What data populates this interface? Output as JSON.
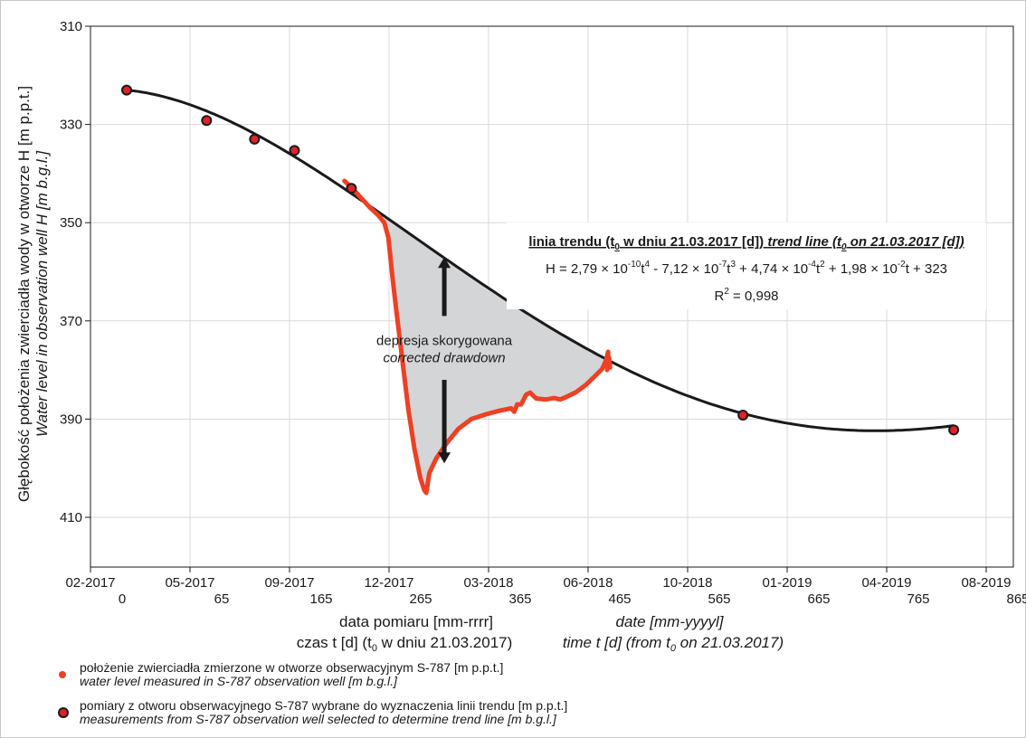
{
  "chart_data": {
    "type": "line",
    "ylim_label_order": "inverted",
    "ylim": [
      310,
      430
    ],
    "xlim": [
      0,
      865
    ],
    "grid": true,
    "y_ticks": [
      310,
      330,
      350,
      370,
      390,
      410
    ],
    "x_date_ticks": [
      {
        "t": 0,
        "date": "02-2017",
        "day": "0"
      },
      {
        "t": 100,
        "date": "05-2017",
        "day": "65"
      },
      {
        "t": 200,
        "date": "09-2017",
        "day": "165"
      },
      {
        "t": 300,
        "date": "12-2017",
        "day": "265"
      },
      {
        "t": 400,
        "date": "03-2018",
        "day": "365"
      },
      {
        "t": 500,
        "date": "06-2018",
        "day": "465"
      },
      {
        "t": 600,
        "date": "10-2018",
        "day": "565"
      },
      {
        "t": 700,
        "date": "01-2019",
        "day": "665"
      },
      {
        "t": 800,
        "date": "04-2019",
        "day": "765"
      },
      {
        "t": 900,
        "date": "08-2019",
        "day": "865"
      }
    ],
    "ylabel_pl": "Głębokość położenia zwierciadła wody w otworze H [m p.p.t.]",
    "ylabel_en": "Water level in observation well H [m b.g.l.]",
    "xlabel_date_pl": "data pomiaru [mm-rrrr]",
    "xlabel_date_en": "date [mm-yyyyl]",
    "xlabel_time_pl": "czas t [d] (t",
    "xlabel_time_pl_sub": "0",
    "xlabel_time_pl_rest": " w dniu 21.03.2017)",
    "xlabel_time_en": "time t [d] (from t",
    "xlabel_time_en_sub": "0",
    "xlabel_time_en_rest": " on 21.03.2017)",
    "trend_params": {
      "a4": 2.79e-10,
      "a3": -7.12e-07,
      "a2": 0.000474,
      "a1": 0.0198,
      "a0": 323,
      "t_start": 0,
      "t_end": 828
    },
    "selected_points": [
      {
        "t": 0,
        "h": 323
      },
      {
        "t": 80,
        "h": 329.2
      },
      {
        "t": 128,
        "h": 333
      },
      {
        "t": 168,
        "h": 335.3
      },
      {
        "t": 225,
        "h": 343
      },
      {
        "t": 617,
        "h": 389.2
      },
      {
        "t": 828,
        "h": 392.2
      }
    ],
    "measured_series": [
      {
        "t": 218,
        "h": 341.5
      },
      {
        "t": 226,
        "h": 343
      },
      {
        "t": 234,
        "h": 344.8
      },
      {
        "t": 244,
        "h": 347
      },
      {
        "t": 252,
        "h": 348.5
      },
      {
        "t": 258,
        "h": 350
      },
      {
        "t": 262,
        "h": 353
      },
      {
        "t": 264,
        "h": 357
      },
      {
        "t": 266,
        "h": 361
      },
      {
        "t": 270,
        "h": 368
      },
      {
        "t": 276,
        "h": 378
      },
      {
        "t": 282,
        "h": 388
      },
      {
        "t": 288,
        "h": 396
      },
      {
        "t": 294,
        "h": 402
      },
      {
        "t": 298,
        "h": 404.5
      },
      {
        "t": 300,
        "h": 405
      },
      {
        "t": 303,
        "h": 401
      },
      {
        "t": 310,
        "h": 398
      },
      {
        "t": 320,
        "h": 395
      },
      {
        "t": 332,
        "h": 392
      },
      {
        "t": 345,
        "h": 390
      },
      {
        "t": 360,
        "h": 389
      },
      {
        "t": 373,
        "h": 388.3
      },
      {
        "t": 385,
        "h": 387.8
      },
      {
        "t": 388,
        "h": 388.5
      },
      {
        "t": 391,
        "h": 387
      },
      {
        "t": 395,
        "h": 387
      },
      {
        "t": 400,
        "h": 385
      },
      {
        "t": 404,
        "h": 384.6
      },
      {
        "t": 410,
        "h": 385.8
      },
      {
        "t": 420,
        "h": 386
      },
      {
        "t": 428,
        "h": 385.7
      },
      {
        "t": 434,
        "h": 386
      },
      {
        "t": 440,
        "h": 385.5
      },
      {
        "t": 450,
        "h": 384.5
      },
      {
        "t": 460,
        "h": 383
      },
      {
        "t": 470,
        "h": 381
      },
      {
        "t": 476,
        "h": 379.8
      },
      {
        "t": 480,
        "h": 378
      },
      {
        "t": 482,
        "h": 376.3
      },
      {
        "t": 482,
        "h": 378.5
      },
      {
        "t": 481,
        "h": 380
      },
      {
        "t": 483,
        "h": 377.5
      },
      {
        "t": 484,
        "h": 379.5
      }
    ],
    "annotation": {
      "t": 318,
      "line1": "depresja skorygowana",
      "line2": "corrected drawdown",
      "arrow_top_h": 357,
      "arrow_bottom_h": 399,
      "gap_top_h": 369,
      "gap_bottom_h": 382
    },
    "equation": {
      "title_pl_a": "linia trendu (t",
      "title_pl_sub": "0",
      "title_pl_b": " w dniu 21.03.2017 [d])",
      "title_en_a": "trend line (t",
      "title_en_sub": "0",
      "title_en_b": " on 21.03.2017 [d])",
      "H_eq": "H = 2,79 × 10",
      "H_e1": "-10",
      "H_t1": "t",
      "H_p1": "4",
      "H_m2": " - 7,12 × 10",
      "H_e2": "-7",
      "H_t2": "t",
      "H_p2": "3",
      "H_m3": " + 4,74 × 10",
      "H_e3": "-4",
      "H_t3": "t",
      "H_p3": "2",
      "H_m4": " + 1,98 × 10",
      "H_e4": "-2",
      "H_rest": "t + 323",
      "r2_a": "R",
      "r2_sup": "2",
      "r2_b": " = 0,998"
    },
    "legend": [
      {
        "marker": "measured",
        "line1": "położenie zwierciadła zmierzone w otworze obserwacyjnym S-787 [m p.p.t.]",
        "line2": "water level measured in S-787 observation well [m b.g.l.]"
      },
      {
        "marker": "selected",
        "line1": "pomiary z otworu obserwacyjnego S-787 wybrane do wyznaczenia linii trendu [m p.p.t.]",
        "line2": "measurements from S-787 observation well selected to determine trend line [m b.g.l.]"
      }
    ],
    "colors": {
      "measured": "#ee4023",
      "marker_fill": "#e2202a",
      "trend": "#1a1a1a",
      "shade": "#d4d5d7",
      "grid": "#d9d9d9"
    }
  }
}
